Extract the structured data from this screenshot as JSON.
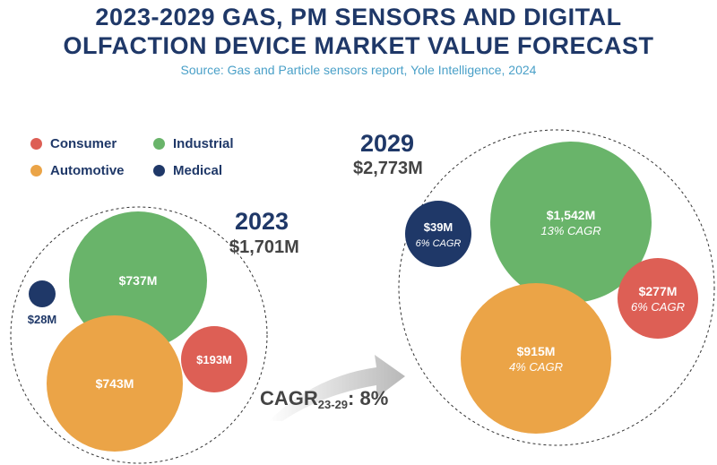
{
  "title_line1": "2023-2029 GAS, PM SENSORS AND DIGITAL",
  "title_line2": "OLFACTION DEVICE MARKET VALUE FORECAST",
  "source": "Source: Gas and Particle sensors report, Yole Intelligence, 2024",
  "legend": [
    {
      "label": "Consumer",
      "color": "#dd5f55"
    },
    {
      "label": "Industrial",
      "color": "#69b46a"
    },
    {
      "label": "Automotive",
      "color": "#eba447"
    },
    {
      "label": "Medical",
      "color": "#1f3868"
    }
  ],
  "y2023": {
    "year": "2023",
    "total": "$1,701M"
  },
  "y2029": {
    "year": "2029",
    "total": "$2,773M"
  },
  "cagr": {
    "main": "CAGR",
    "sub": "23-29",
    "value": ": 8%"
  },
  "chart_data": {
    "type": "bubble",
    "title": "2023-2029 Gas, PM Sensors and Digital Olfaction Device Market Value Forecast",
    "unit": "$M",
    "series": [
      {
        "name": "2023",
        "total": 1701,
        "segments": [
          {
            "category": "Industrial",
            "value": 737,
            "label": "$737M",
            "cagr": ""
          },
          {
            "category": "Automotive",
            "value": 743,
            "label": "$743M",
            "cagr": ""
          },
          {
            "category": "Consumer",
            "value": 193,
            "label": "$193M",
            "cagr": ""
          },
          {
            "category": "Medical",
            "value": 28,
            "label": "$28M",
            "cagr": ""
          }
        ]
      },
      {
        "name": "2029",
        "total": 2773,
        "segments": [
          {
            "category": "Industrial",
            "value": 1542,
            "label": "$1,542M",
            "cagr": "13% CAGR"
          },
          {
            "category": "Automotive",
            "value": 915,
            "label": "$915M",
            "cagr": "4% CAGR"
          },
          {
            "category": "Consumer",
            "value": 277,
            "label": "$277M",
            "cagr": "6% CAGR"
          },
          {
            "category": "Medical",
            "value": 39,
            "label": "$39M",
            "cagr": "6% CAGR"
          }
        ]
      }
    ],
    "overall_cagr": "8%"
  }
}
